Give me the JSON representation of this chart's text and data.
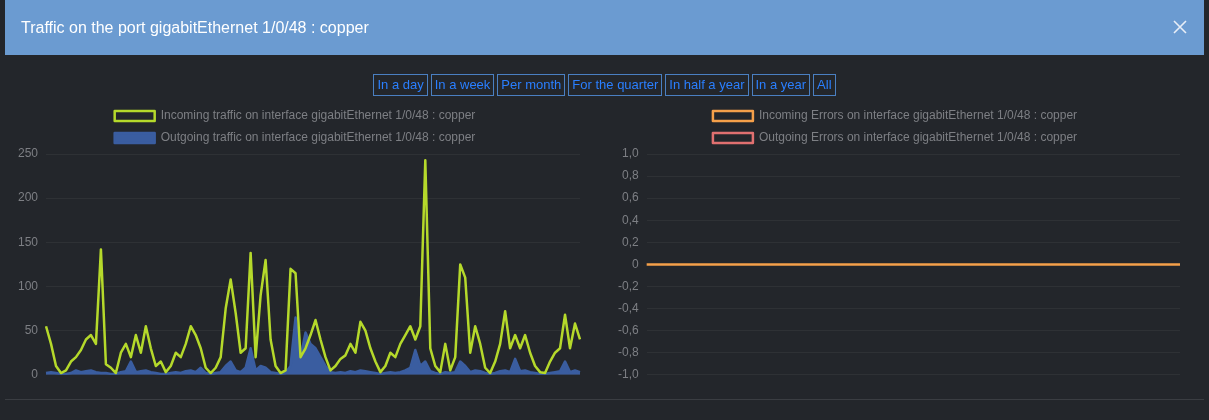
{
  "chart_data": [
    {
      "type": "line",
      "title": "Traffic on the port gigabitEthernet 1/0/48 : copper",
      "annotations": [
        "In a day",
        "In a week",
        "Per month",
        "For the quarter",
        "In half a year",
        "In a year",
        "All"
      ],
      "categories": [
        null,
        null,
        null,
        null,
        null,
        null,
        null,
        null,
        null,
        null,
        null,
        null,
        null,
        null,
        null,
        null,
        null,
        null,
        null,
        null,
        null,
        null,
        null,
        null,
        null,
        null,
        null,
        null,
        null,
        null,
        null,
        null,
        null,
        null,
        null,
        null,
        null,
        null,
        null,
        null,
        null,
        null,
        null,
        null,
        null,
        null,
        null,
        null,
        null,
        null,
        null,
        null,
        null,
        null,
        null,
        null,
        null,
        null,
        null,
        null,
        null,
        null,
        null,
        null,
        null,
        null,
        null,
        null,
        null,
        null,
        null,
        null,
        null,
        null,
        null,
        null,
        null,
        null,
        null,
        null,
        null,
        null,
        null,
        null,
        null,
        null,
        null,
        null,
        null,
        null,
        null,
        null,
        null,
        null,
        null,
        null,
        null,
        null,
        null,
        null,
        null,
        null,
        null,
        null,
        null,
        null,
        null,
        null
      ],
      "series": [
        {
          "name": "Incoming traffic on interface gigabitEthernet 1/0/48 : copper",
          "type": "line",
          "color": "#b5d92b",
          "values": [
            55,
            35,
            10,
            2,
            5,
            15,
            20,
            28,
            40,
            45,
            35,
            142,
            12,
            8,
            2,
            25,
            35,
            20,
            45,
            25,
            55,
            30,
            10,
            15,
            3,
            10,
            25,
            20,
            35,
            55,
            45,
            30,
            8,
            2,
            8,
            20,
            75,
            108,
            70,
            25,
            30,
            138,
            20,
            90,
            130,
            40,
            10,
            2,
            5,
            120,
            115,
            20,
            30,
            45,
            62,
            40,
            20,
            5,
            10,
            18,
            22,
            35,
            25,
            60,
            50,
            30,
            15,
            3,
            10,
            25,
            20,
            35,
            45,
            55,
            40,
            55,
            243,
            30,
            10,
            3,
            35,
            5,
            20,
            125,
            110,
            25,
            55,
            35,
            8,
            2,
            15,
            35,
            72,
            30,
            45,
            30,
            45,
            25,
            10,
            3,
            2,
            15,
            25,
            30,
            68,
            30,
            58,
            40
          ]
        },
        {
          "name": "Outgoing traffic on interface gigabitEthernet 1/0/48 : copper",
          "type": "area",
          "color": "#3a5da0",
          "values": [
            2,
            3,
            2,
            1,
            1,
            2,
            5,
            3,
            4,
            5,
            3,
            2,
            2,
            1,
            1,
            3,
            4,
            15,
            3,
            4,
            5,
            3,
            2,
            1,
            1,
            2,
            3,
            2,
            4,
            5,
            3,
            8,
            2,
            1,
            2,
            3,
            10,
            15,
            5,
            3,
            8,
            30,
            5,
            10,
            8,
            3,
            2,
            1,
            2,
            10,
            65,
            20,
            48,
            35,
            30,
            20,
            10,
            3,
            2,
            3,
            2,
            4,
            3,
            5,
            4,
            3,
            2,
            1,
            2,
            3,
            2,
            3,
            5,
            8,
            28,
            10,
            15,
            4,
            2,
            1,
            3,
            2,
            3,
            15,
            10,
            3,
            5,
            4,
            2,
            1,
            2,
            4,
            5,
            3,
            18,
            4,
            5,
            3,
            2,
            1,
            1,
            2,
            3,
            4,
            15,
            3,
            5,
            3
          ]
        }
      ],
      "ylim": [
        0,
        250
      ],
      "yticks": [
        0,
        50,
        100,
        150,
        200,
        250
      ],
      "grid": "y",
      "legend": "top",
      "tick_labels": "y",
      "marker": "none"
    },
    {
      "type": "line",
      "categories": [
        null,
        null,
        null,
        null,
        null,
        null,
        null,
        null,
        null,
        null
      ],
      "series": [
        {
          "name": "Incoming Errors on interface gigabitEthernet 1/0/48 : copper",
          "type": "line",
          "color": "#f5a04a",
          "values": [
            0,
            0,
            0,
            0,
            0,
            0,
            0,
            0,
            0,
            0
          ]
        },
        {
          "name": "Outgoing Errors on interface gigabitEthernet 1/0/48 : copper",
          "type": "line",
          "color": "#e07070",
          "values": [
            null,
            null,
            null,
            null,
            null,
            null,
            null,
            null,
            null,
            null
          ]
        }
      ],
      "ylim": [
        -1,
        1
      ],
      "yticks": [
        {
          "value": -1,
          "label": "-1,0"
        },
        {
          "value": -0.8,
          "label": "-0,8"
        },
        {
          "value": -0.6,
          "label": "-0,6"
        },
        {
          "value": -0.4,
          "label": "-0,4"
        },
        {
          "value": -0.2,
          "label": "-0,2"
        },
        0,
        {
          "value": 0.2,
          "label": "0,2"
        },
        {
          "value": 0.4,
          "label": "0,4"
        },
        {
          "value": 0.6,
          "label": "0,6"
        },
        {
          "value": 0.8,
          "label": "0,8"
        },
        {
          "value": 1,
          "label": "1,0"
        }
      ],
      "grid": "y",
      "legend": "top",
      "tick_labels": "y",
      "marker": "none"
    }
  ]
}
